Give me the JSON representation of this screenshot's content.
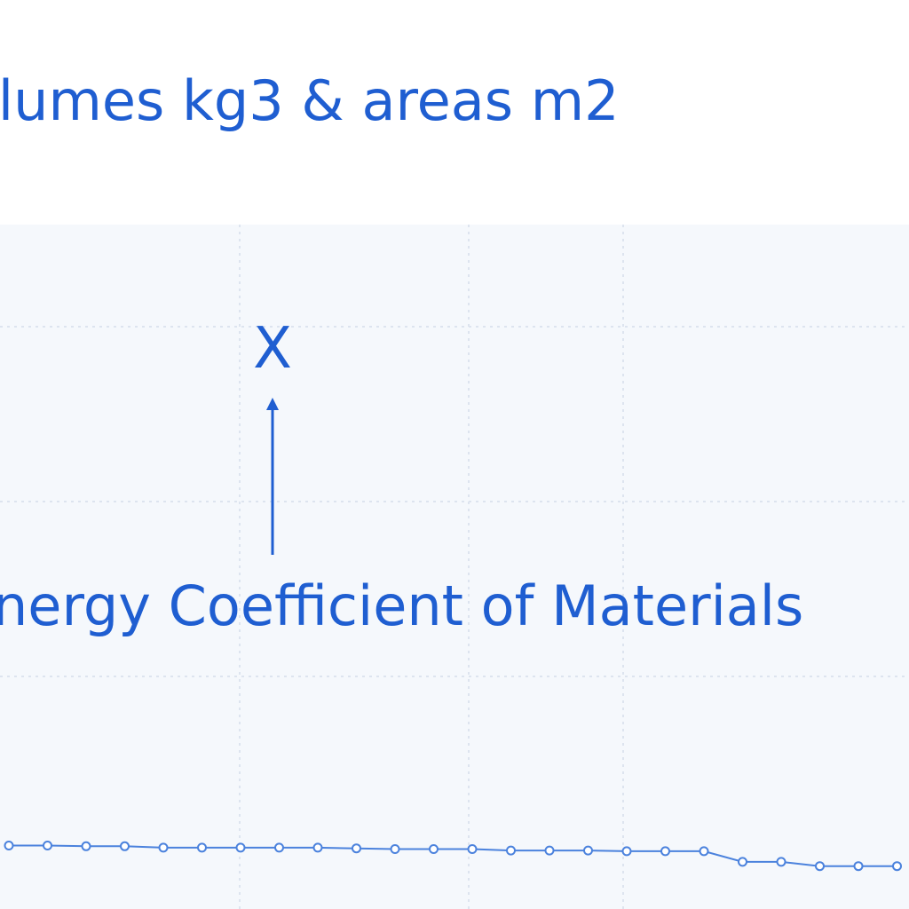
{
  "chart_data": {
    "type": "line",
    "title": "olumes kg3 & areas m2",
    "annotation": {
      "text": "nergy Coefficient of Materials",
      "marker": "X"
    },
    "series": [
      {
        "values": [
          1.03,
          1.03,
          1.02,
          1.02,
          1.0,
          1.0,
          1.0,
          1.0,
          1.0,
          0.99,
          0.98,
          0.98,
          0.98,
          0.96,
          0.96,
          0.96,
          0.95,
          0.95,
          0.95,
          0.8,
          0.8,
          0.74,
          0.74,
          0.74
        ]
      }
    ],
    "grid": true,
    "colors": {
      "accent": "#1f5ed1",
      "line": "#4b82dd",
      "plot_background": "#f5f8fc",
      "grid": "#dde4ef"
    }
  }
}
